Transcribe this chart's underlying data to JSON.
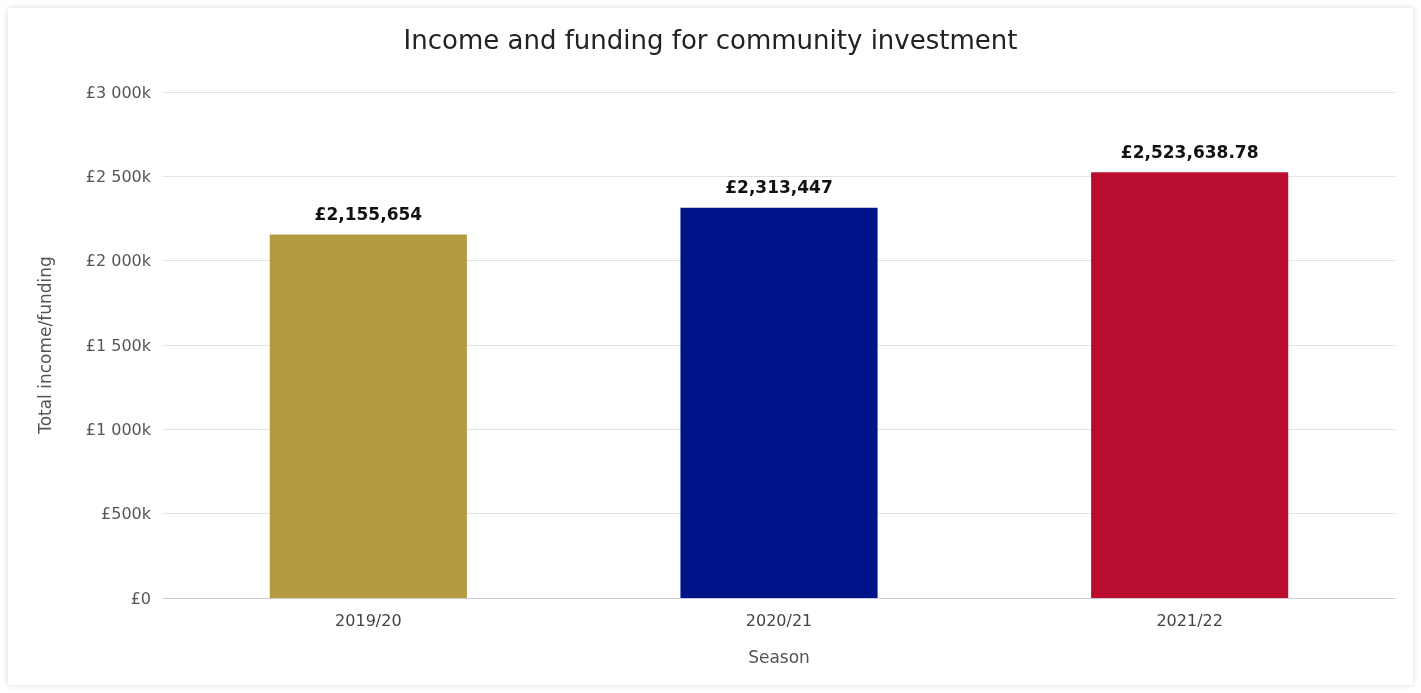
{
  "chart_data": {
    "type": "bar",
    "title": "Income and funding for community investment",
    "xlabel": "Season",
    "ylabel": "Total income/funding",
    "categories": [
      "2019/20",
      "2020/21",
      "2021/22"
    ],
    "values": [
      2155654,
      2313447,
      2523638.78
    ],
    "colors": [
      "#b59a42",
      "#001489",
      "#ba0c2f"
    ],
    "value_labels": [
      "£2,155,654",
      "£2,313,447",
      "£2,523,638.78"
    ],
    "ylim": [
      0,
      3000000
    ],
    "yticks": [
      {
        "value": 0,
        "label": "£0"
      },
      {
        "value": 500000,
        "label": "£500k"
      },
      {
        "value": 1000000,
        "label": "£1 000k"
      },
      {
        "value": 1500000,
        "label": "£1 500k"
      },
      {
        "value": 2000000,
        "label": "£2 000k"
      },
      {
        "value": 2500000,
        "label": "£2 500k"
      },
      {
        "value": 3000000,
        "label": "£3 000k"
      }
    ],
    "grid": "y"
  }
}
